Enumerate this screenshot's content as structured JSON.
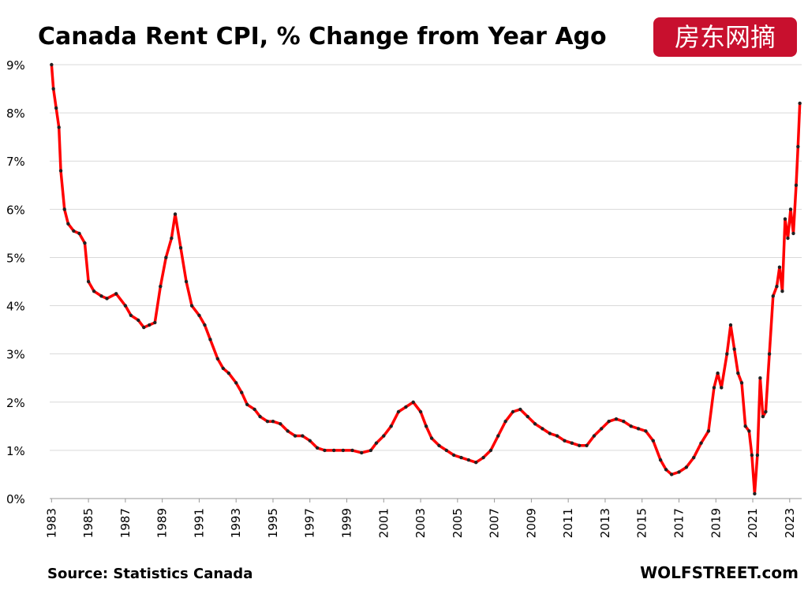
{
  "chart_data": {
    "type": "line",
    "title": "Canada Rent CPI, % Change from Year Ago",
    "source": "Source: Statistics Canada",
    "brand": "WOLFSTREET.com",
    "watermark": "房东网摘",
    "xlim": [
      1982.9,
      2023.65
    ],
    "xticks": [
      1983,
      1985,
      1987,
      1989,
      1991,
      1993,
      1995,
      1997,
      1999,
      2001,
      2003,
      2005,
      2007,
      2009,
      2011,
      2013,
      2015,
      2017,
      2019,
      2021,
      2023
    ],
    "ylim": [
      0,
      9
    ],
    "yticks": [
      {
        "value": 0,
        "label": "0%"
      },
      {
        "value": 1,
        "label": "1%"
      },
      {
        "value": 2,
        "label": "2%"
      },
      {
        "value": 3,
        "label": "3%"
      },
      {
        "value": 4,
        "label": "4%"
      },
      {
        "value": 5,
        "label": "5%"
      },
      {
        "value": 6,
        "label": "6%"
      },
      {
        "value": 7,
        "label": "7%"
      },
      {
        "value": 8,
        "label": "8%"
      },
      {
        "value": 9,
        "label": "9%"
      }
    ],
    "grid": true,
    "series": [
      {
        "color": "#ff0000",
        "marker_color": "#222222",
        "x": [
          1983.0,
          1983.1,
          1983.25,
          1983.4,
          1983.5,
          1983.7,
          1983.9,
          1984.2,
          1984.5,
          1984.8,
          1985.0,
          1985.3,
          1985.7,
          1986.0,
          1986.5,
          1987.0,
          1987.3,
          1987.7,
          1988.0,
          1988.3,
          1988.6,
          1988.9,
          1989.2,
          1989.5,
          1989.7,
          1990.0,
          1990.3,
          1990.6,
          1991.0,
          1991.3,
          1991.6,
          1992.0,
          1992.3,
          1992.6,
          1993.0,
          1993.3,
          1993.6,
          1994.0,
          1994.3,
          1994.7,
          1995.0,
          1995.4,
          1995.8,
          1996.2,
          1996.6,
          1997.0,
          1997.4,
          1997.8,
          1998.3,
          1998.8,
          1999.3,
          1999.8,
          2000.3,
          2000.6,
          2001.0,
          2001.4,
          2001.8,
          2002.2,
          2002.6,
          2003.0,
          2003.3,
          2003.6,
          2004.0,
          2004.4,
          2004.8,
          2005.2,
          2005.6,
          2006.0,
          2006.4,
          2006.8,
          2007.2,
          2007.6,
          2008.0,
          2008.4,
          2008.8,
          2009.2,
          2009.6,
          2010.0,
          2010.4,
          2010.8,
          2011.2,
          2011.6,
          2012.0,
          2012.4,
          2012.8,
          2013.2,
          2013.6,
          2014.0,
          2014.4,
          2014.8,
          2015.2,
          2015.6,
          2016.0,
          2016.3,
          2016.6,
          2017.0,
          2017.4,
          2017.8,
          2018.2,
          2018.6,
          2018.9,
          2019.1,
          2019.3,
          2019.6,
          2019.8,
          2020.0,
          2020.2,
          2020.4,
          2020.6,
          2020.8,
          2020.95,
          2021.1,
          2021.25,
          2021.4,
          2021.55,
          2021.7,
          2021.9,
          2022.1,
          2022.3,
          2022.45,
          2022.6,
          2022.75,
          2022.9,
          2023.05,
          2023.2,
          2023.35,
          2023.45,
          2023.55
        ],
        "values": [
          9.0,
          8.5,
          8.1,
          7.7,
          6.8,
          6.0,
          5.7,
          5.55,
          5.5,
          5.3,
          4.5,
          4.3,
          4.2,
          4.15,
          4.25,
          4.0,
          3.8,
          3.7,
          3.55,
          3.6,
          3.65,
          4.4,
          5.0,
          5.4,
          5.9,
          5.2,
          4.5,
          4.0,
          3.8,
          3.6,
          3.3,
          2.9,
          2.7,
          2.6,
          2.4,
          2.2,
          1.95,
          1.85,
          1.7,
          1.6,
          1.6,
          1.55,
          1.4,
          1.3,
          1.3,
          1.2,
          1.05,
          1.0,
          1.0,
          1.0,
          1.0,
          0.95,
          1.0,
          1.15,
          1.3,
          1.5,
          1.8,
          1.9,
          2.0,
          1.8,
          1.5,
          1.25,
          1.1,
          1.0,
          0.9,
          0.85,
          0.8,
          0.75,
          0.85,
          1.0,
          1.3,
          1.6,
          1.8,
          1.85,
          1.7,
          1.55,
          1.45,
          1.35,
          1.3,
          1.2,
          1.15,
          1.1,
          1.1,
          1.3,
          1.45,
          1.6,
          1.65,
          1.6,
          1.5,
          1.45,
          1.4,
          1.2,
          0.8,
          0.6,
          0.5,
          0.55,
          0.65,
          0.85,
          1.15,
          1.4,
          2.3,
          2.6,
          2.3,
          3.0,
          3.6,
          3.1,
          2.6,
          2.4,
          1.5,
          1.4,
          0.9,
          0.1,
          0.9,
          2.5,
          1.7,
          1.8,
          3.0,
          4.2,
          4.4,
          4.8,
          4.3,
          5.8,
          5.4,
          6.0,
          5.5,
          6.5,
          7.3,
          8.2
        ]
      }
    ]
  }
}
